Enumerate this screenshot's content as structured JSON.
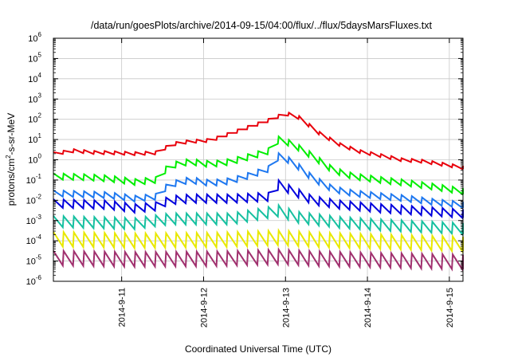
{
  "chart_data": {
    "type": "line",
    "title": "/data/run/goesPlots/archive/2014-09-15/04:00/flux/../flux/5daysMarsFluxes.txt",
    "xlabel": "Coordinated Universal Time (UTC)",
    "ylabel": "protons/cm2-s-sr-MeV",
    "ylabel_parts": {
      "before": "protons/cm",
      "sup": "2",
      "after": "-s-sr-MeV"
    },
    "y_scale": "log",
    "ylim": [
      1e-06,
      1000000.0
    ],
    "y_ticks": [
      {
        "exp": -6,
        "base": "10",
        "sup": "-6"
      },
      {
        "exp": -5,
        "base": "10",
        "sup": "-5"
      },
      {
        "exp": -4,
        "base": "10",
        "sup": "-4"
      },
      {
        "exp": -3,
        "base": "10",
        "sup": "-3"
      },
      {
        "exp": -2,
        "base": "10",
        "sup": "-2"
      },
      {
        "exp": -1,
        "base": "10",
        "sup": "-1"
      },
      {
        "exp": 0,
        "base": "10",
        "sup": "0"
      },
      {
        "exp": 1,
        "base": "10",
        "sup": "1"
      },
      {
        "exp": 2,
        "base": "10",
        "sup": "2"
      },
      {
        "exp": 3,
        "base": "10",
        "sup": "3"
      },
      {
        "exp": 4,
        "base": "10",
        "sup": "4"
      },
      {
        "exp": 5,
        "base": "10",
        "sup": "5"
      },
      {
        "exp": 6,
        "base": "10",
        "sup": "6"
      }
    ],
    "xlim": [
      "2014-09-10T04:00",
      "2014-09-15T04:00"
    ],
    "x_ticks": [
      {
        "label": "2014-9-11",
        "date": "2014-09-11"
      },
      {
        "label": "2014-9-12",
        "date": "2014-09-12"
      },
      {
        "label": "2014-9-13",
        "date": "2014-09-13"
      },
      {
        "label": "2014-9-14",
        "date": "2014-09-14"
      },
      {
        "label": "2014-9-15",
        "date": "2014-09-15"
      }
    ],
    "grid": true,
    "legend": "none",
    "sawtooth_period_hours": 3,
    "series": [
      {
        "color": "#e8000b",
        "points": [
          [
            "2014-09-10T04:00",
            2.0
          ],
          [
            "2014-09-10T10:00",
            2.8
          ],
          [
            "2014-09-10T16:00",
            2.3
          ],
          [
            "2014-09-10T22:00",
            2.2
          ],
          [
            "2014-09-11T04:00",
            2.0
          ],
          [
            "2014-09-11T10:00",
            2.2
          ],
          [
            "2014-09-11T15:00",
            6.0
          ],
          [
            "2014-09-11T20:00",
            8.0
          ],
          [
            "2014-09-12T02:00",
            9.0
          ],
          [
            "2014-09-12T08:00",
            20
          ],
          [
            "2014-09-12T14:00",
            45
          ],
          [
            "2014-09-12T20:00",
            100
          ],
          [
            "2014-09-13T00:00",
            200
          ],
          [
            "2014-09-13T04:00",
            120
          ],
          [
            "2014-09-13T10:00",
            20
          ],
          [
            "2014-09-13T16:00",
            5.5
          ],
          [
            "2014-09-13T22:00",
            2.5
          ],
          [
            "2014-09-14T04:00",
            1.6
          ],
          [
            "2014-09-14T10:00",
            1.0
          ],
          [
            "2014-09-14T16:00",
            0.85
          ],
          [
            "2014-09-14T22:00",
            0.6
          ],
          [
            "2014-09-15T04:00",
            0.42
          ]
        ]
      },
      {
        "color": "#00ee00",
        "points": [
          [
            "2014-09-10T04:00",
            0.15
          ],
          [
            "2014-09-10T12:00",
            0.14
          ],
          [
            "2014-09-10T20:00",
            0.12
          ],
          [
            "2014-09-11T04:00",
            0.08
          ],
          [
            "2014-09-11T10:00",
            0.1
          ],
          [
            "2014-09-11T14:00",
            0.5
          ],
          [
            "2014-09-11T20:00",
            0.8
          ],
          [
            "2014-09-12T02:00",
            0.6
          ],
          [
            "2014-09-12T08:00",
            0.8
          ],
          [
            "2014-09-12T14:00",
            1.5
          ],
          [
            "2014-09-12T20:00",
            3.0
          ],
          [
            "2014-09-12T22:00",
            10
          ],
          [
            "2014-09-13T02:00",
            6.0
          ],
          [
            "2014-09-13T08:00",
            1.5
          ],
          [
            "2014-09-13T14:00",
            0.3
          ],
          [
            "2014-09-13T20:00",
            0.15
          ],
          [
            "2014-09-14T04:00",
            0.1
          ],
          [
            "2014-09-14T12:00",
            0.07
          ],
          [
            "2014-09-14T20:00",
            0.045
          ],
          [
            "2014-09-15T04:00",
            0.028
          ]
        ]
      },
      {
        "color": "#1e78f0",
        "points": [
          [
            "2014-09-10T04:00",
            0.022
          ],
          [
            "2014-09-10T12:00",
            0.02
          ],
          [
            "2014-09-10T20:00",
            0.018
          ],
          [
            "2014-09-11T04:00",
            0.012
          ],
          [
            "2014-09-11T10:00",
            0.015
          ],
          [
            "2014-09-11T14:00",
            0.06
          ],
          [
            "2014-09-11T20:00",
            0.1
          ],
          [
            "2014-09-12T02:00",
            0.07
          ],
          [
            "2014-09-12T08:00",
            0.09
          ],
          [
            "2014-09-12T14:00",
            0.18
          ],
          [
            "2014-09-12T20:00",
            0.4
          ],
          [
            "2014-09-12T22:00",
            1.5
          ],
          [
            "2014-09-13T02:00",
            0.8
          ],
          [
            "2014-09-13T08:00",
            0.12
          ],
          [
            "2014-09-13T14:00",
            0.035
          ],
          [
            "2014-09-13T20:00",
            0.022
          ],
          [
            "2014-09-14T04:00",
            0.016
          ],
          [
            "2014-09-14T12:00",
            0.012
          ],
          [
            "2014-09-14T20:00",
            0.008
          ],
          [
            "2014-09-15T04:00",
            0.006
          ]
        ]
      },
      {
        "color": "#0000dd",
        "points": [
          [
            "2014-09-10T04:00",
            0.007
          ],
          [
            "2014-09-10T20:00",
            0.006
          ],
          [
            "2014-09-11T04:00",
            0.004
          ],
          [
            "2014-09-11T10:00",
            0.005
          ],
          [
            "2014-09-11T14:00",
            0.01
          ],
          [
            "2014-09-11T20:00",
            0.012
          ],
          [
            "2014-09-12T08:00",
            0.012
          ],
          [
            "2014-09-12T20:00",
            0.015
          ],
          [
            "2014-09-12T22:00",
            0.06
          ],
          [
            "2014-09-13T02:00",
            0.03
          ],
          [
            "2014-09-13T08:00",
            0.01
          ],
          [
            "2014-09-13T16:00",
            0.006
          ],
          [
            "2014-09-14T04:00",
            0.004
          ],
          [
            "2014-09-14T16:00",
            0.003
          ],
          [
            "2014-09-15T04:00",
            0.0022
          ]
        ]
      },
      {
        "color": "#16c0a0",
        "points": [
          [
            "2014-09-10T04:00",
            0.0009
          ],
          [
            "2014-09-11T04:00",
            0.0007
          ],
          [
            "2014-09-11T14:00",
            0.0012
          ],
          [
            "2014-09-12T08:00",
            0.0012
          ],
          [
            "2014-09-12T22:00",
            0.003
          ],
          [
            "2014-09-13T04:00",
            0.0014
          ],
          [
            "2014-09-13T16:00",
            0.0008
          ],
          [
            "2014-09-14T04:00",
            0.0006
          ],
          [
            "2014-09-15T04:00",
            0.0004
          ]
        ]
      },
      {
        "color": "#e8e800",
        "points": [
          [
            "2014-09-10T04:00",
            0.00012
          ],
          [
            "2014-09-11T04:00",
            0.0001
          ],
          [
            "2014-09-12T04:00",
            0.00011
          ],
          [
            "2014-09-12T22:00",
            0.00014
          ],
          [
            "2014-09-13T10:00",
            0.00011
          ],
          [
            "2014-09-14T04:00",
            9e-05
          ],
          [
            "2014-09-15T04:00",
            7e-05
          ]
        ]
      },
      {
        "color": "#a0306e",
        "points": [
          [
            "2014-09-10T04:00",
            1.4e-05
          ],
          [
            "2014-09-11T04:00",
            1.2e-05
          ],
          [
            "2014-09-12T04:00",
            1.3e-05
          ],
          [
            "2014-09-12T22:00",
            1.6e-05
          ],
          [
            "2014-09-13T10:00",
            1.3e-05
          ],
          [
            "2014-09-14T04:00",
            1.1e-05
          ],
          [
            "2014-09-15T04:00",
            9e-06
          ]
        ]
      }
    ]
  }
}
